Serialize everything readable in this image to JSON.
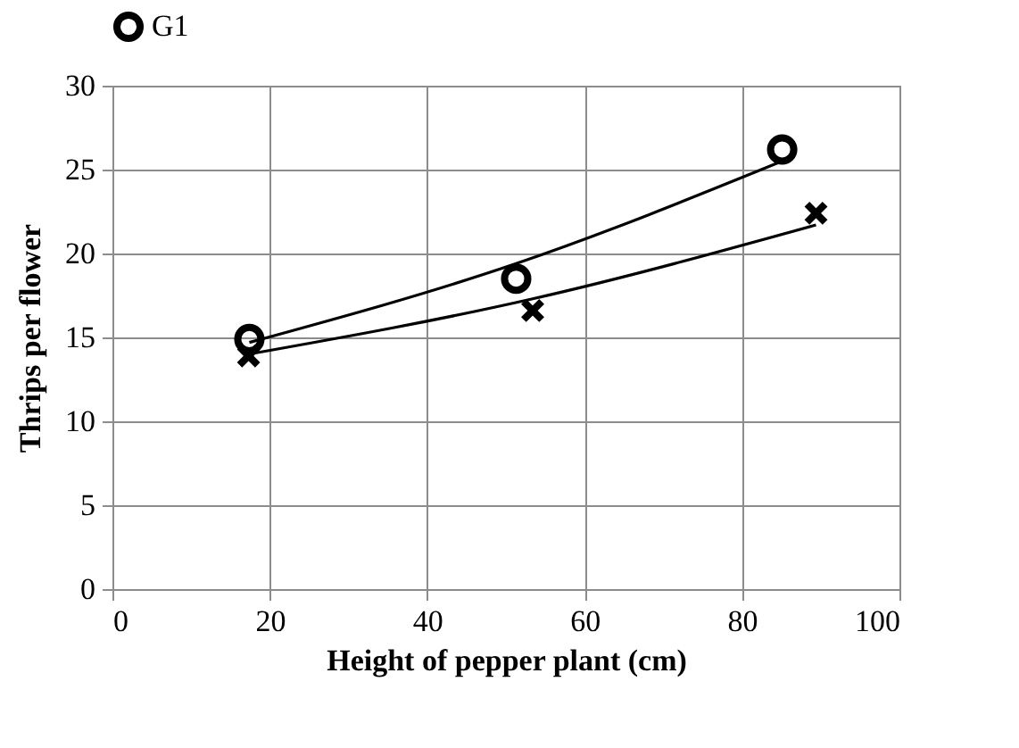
{
  "chart_data": {
    "type": "scatter",
    "xlabel": "Height of pepper plant (cm)",
    "ylabel": "Thrips per flower",
    "xlim": [
      0,
      100
    ],
    "xticks": [
      0,
      20,
      40,
      60,
      80,
      100
    ],
    "ylim": [
      0,
      30
    ],
    "yticks": [
      0,
      5,
      10,
      15,
      20,
      25,
      30
    ],
    "grid": true,
    "legend": "top",
    "series": [
      {
        "name": "G1",
        "color": "#000000",
        "marker": "circle",
        "x": [
          17.4,
          51.3,
          85.1
        ],
        "values": [
          14.9,
          18.5,
          26.2
        ]
      },
      {
        "color": "#000000",
        "marker": "cross",
        "x": [
          17.3,
          53.4,
          89.4
        ],
        "values": [
          13.9,
          16.6,
          22.4
        ]
      },
      {
        "type": "line",
        "color": "#000000",
        "x": [
          17.4,
          51.3,
          85.1
        ],
        "values": [
          14.7,
          19.4,
          25.5
        ]
      },
      {
        "type": "line",
        "color": "#000000",
        "x": [
          17.3,
          53.4,
          89.4
        ],
        "values": [
          14.0,
          17.3,
          21.7
        ]
      }
    ]
  }
}
